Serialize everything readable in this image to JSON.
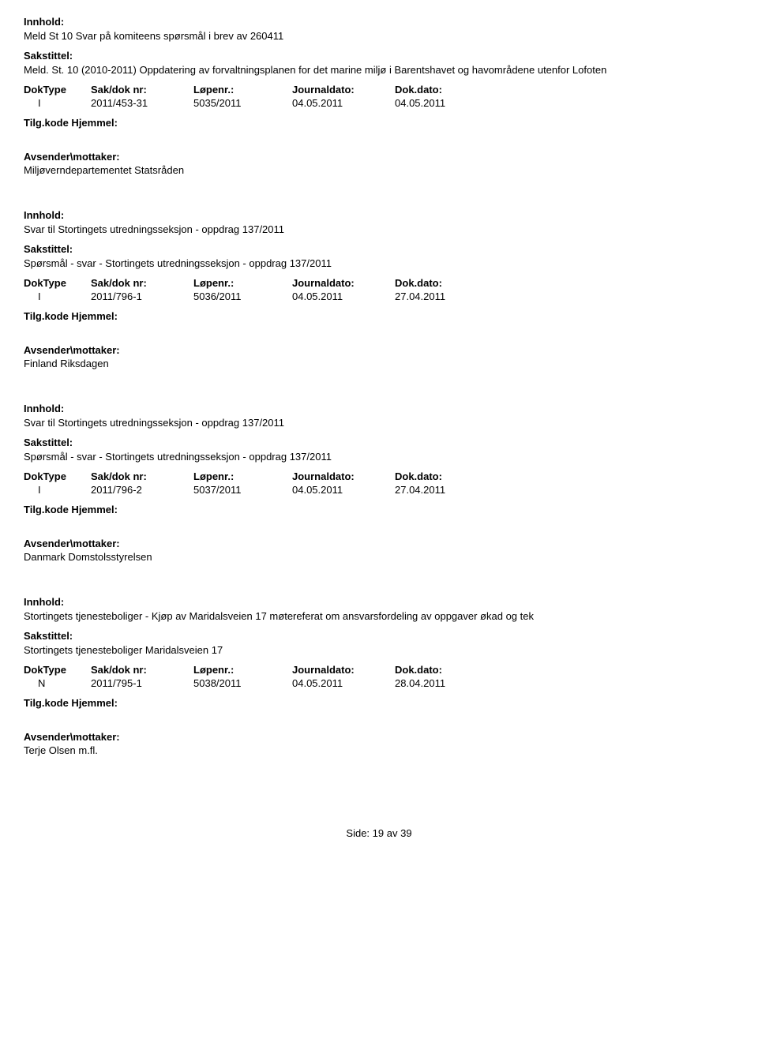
{
  "labels": {
    "innhold": "Innhold:",
    "sakstittel": "Sakstittel:",
    "tilgkode": "Tilg.kode Hjemmel:",
    "avsender": "Avsender\\mottaker:",
    "doktype": "DokType",
    "saknr": "Sak/dok nr:",
    "lopenr": "Løpenr.:",
    "journaldato": "Journaldato:",
    "dokdato": "Dok.dato:"
  },
  "entries": [
    {
      "innhold": "Meld St 10 Svar på komiteens spørsmål i brev av 260411",
      "sakstittel": "Meld. St. 10 (2010-2011) Oppdatering av forvaltningsplanen for det marine miljø i Barentshavet og havområdene utenfor Lofoten",
      "doktype": "I",
      "saknr": "2011/453-31",
      "lopenr": "5035/2011",
      "journaldato": "04.05.2011",
      "dokdato": "04.05.2011",
      "avsender": "Miljøverndepartementet Statsråden"
    },
    {
      "innhold": "Svar til  Stortingets utredningsseksjon - oppdrag 137/2011",
      "sakstittel": "Spørsmål - svar - Stortingets utredningsseksjon - oppdrag 137/2011",
      "doktype": "I",
      "saknr": "2011/796-1",
      "lopenr": "5036/2011",
      "journaldato": "04.05.2011",
      "dokdato": "27.04.2011",
      "avsender": "Finland Riksdagen"
    },
    {
      "innhold": "Svar til  Stortingets utredningsseksjon - oppdrag 137/2011",
      "sakstittel": "Spørsmål - svar - Stortingets utredningsseksjon - oppdrag 137/2011",
      "doktype": "I",
      "saknr": "2011/796-2",
      "lopenr": "5037/2011",
      "journaldato": "04.05.2011",
      "dokdato": "27.04.2011",
      "avsender": "Danmark Domstolsstyrelsen"
    },
    {
      "innhold": "Stortingets tjenesteboliger - Kjøp av Maridalsveien 17 møtereferat om ansvarsfordeling av oppgaver økad og tek",
      "sakstittel": "Stortingets tjenesteboliger Maridalsveien 17",
      "doktype": "N",
      "saknr": "2011/795-1",
      "lopenr": "5038/2011",
      "journaldato": "04.05.2011",
      "dokdato": "28.04.2011",
      "avsender": "Terje Olsen m.fl."
    }
  ],
  "footer": {
    "prefix": "Side:",
    "page": "19",
    "separator": "av",
    "total": "39"
  }
}
